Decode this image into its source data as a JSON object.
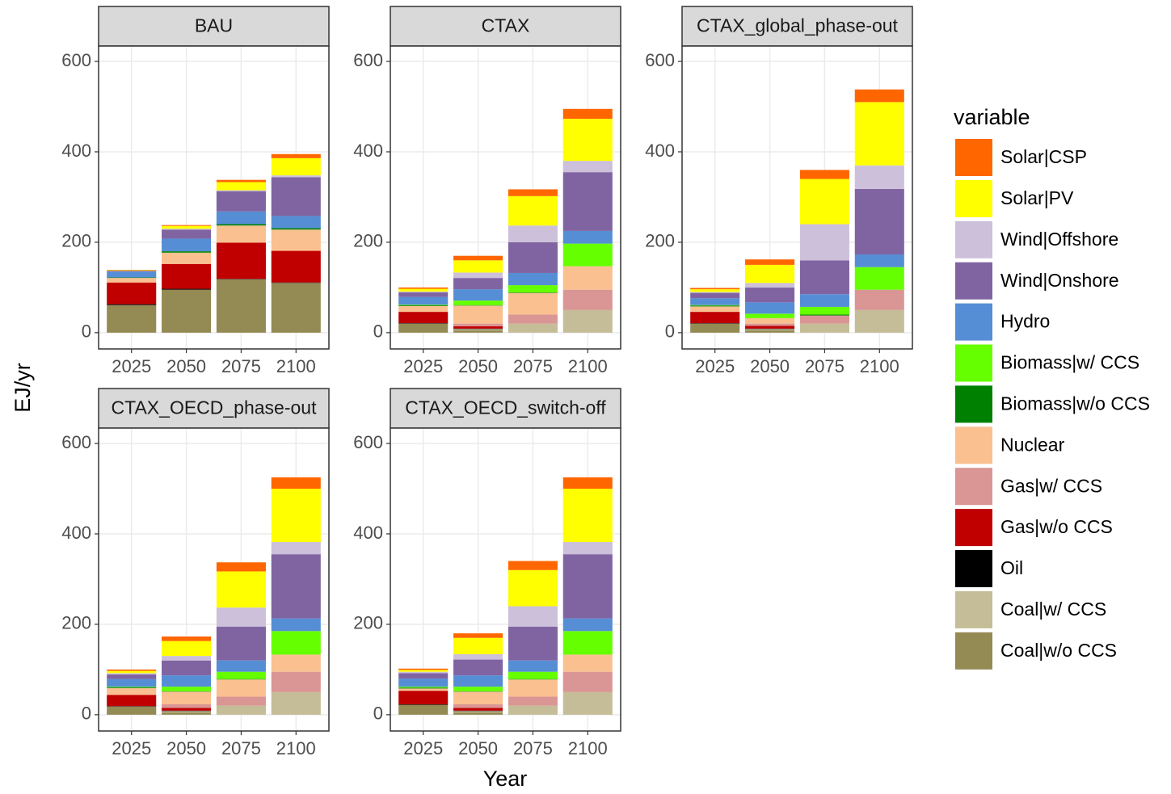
{
  "axis_labels": {
    "x": "Year",
    "y": "EJ/yr"
  },
  "legend": {
    "title": "variable",
    "position": "right",
    "items": [
      {
        "name": "Solar|CSP",
        "color": "#ff6600"
      },
      {
        "name": "Solar|PV",
        "color": "#ffff00"
      },
      {
        "name": "Wind|Offshore",
        "color": "#ccc0da"
      },
      {
        "name": "Wind|Onshore",
        "color": "#8064a2"
      },
      {
        "name": "Hydro",
        "color": "#558ed5"
      },
      {
        "name": "Biomass|w/ CCS",
        "color": "#66ff00"
      },
      {
        "name": "Biomass|w/o CCS",
        "color": "#008000"
      },
      {
        "name": "Nuclear",
        "color": "#fac090"
      },
      {
        "name": "Gas|w/ CCS",
        "color": "#d99694"
      },
      {
        "name": "Gas|w/o CCS",
        "color": "#c00000"
      },
      {
        "name": "Oil",
        "color": "#000000"
      },
      {
        "name": "Coal|w/ CCS",
        "color": "#c4bd97"
      },
      {
        "name": "Coal|w/o CCS",
        "color": "#948a54"
      }
    ]
  },
  "chart_data": [
    {
      "type": "bar",
      "stacked": true,
      "title": "BAU",
      "categories": [
        "2025",
        "2050",
        "2075",
        "2100"
      ],
      "ylim": [
        -36,
        634
      ],
      "yticks": [
        0,
        200,
        400,
        600
      ],
      "grid": true,
      "series": [
        {
          "values": [
            1,
            2,
            5,
            9
          ]
        },
        {
          "values": [
            1,
            6,
            18,
            38
          ]
        },
        {
          "values": [
            0,
            2,
            2,
            4
          ]
        },
        {
          "values": [
            2,
            20,
            45,
            86
          ]
        },
        {
          "values": [
            13,
            28,
            28,
            27
          ]
        },
        {
          "values": [
            0,
            0,
            0,
            0
          ]
        },
        {
          "values": [
            1,
            3,
            3,
            3
          ]
        },
        {
          "values": [
            10,
            25,
            38,
            47
          ]
        },
        {
          "values": [
            0,
            0,
            0,
            0
          ]
        },
        {
          "values": [
            48,
            55,
            80,
            70
          ]
        },
        {
          "values": [
            2,
            2,
            1,
            1
          ]
        },
        {
          "values": [
            0,
            0,
            0,
            0
          ]
        },
        {
          "values": [
            61,
            95,
            118,
            110
          ]
        }
      ]
    },
    {
      "type": "bar",
      "stacked": true,
      "title": "CTAX",
      "categories": [
        "2025",
        "2050",
        "2075",
        "2100"
      ],
      "ylim": [
        -36,
        634
      ],
      "yticks": [
        0,
        200,
        400,
        600
      ],
      "grid": true,
      "series": [
        {
          "values": [
            3,
            10,
            15,
            22
          ]
        },
        {
          "values": [
            6,
            27,
            65,
            93
          ]
        },
        {
          "values": [
            2,
            12,
            37,
            25
          ]
        },
        {
          "values": [
            10,
            25,
            68,
            130
          ]
        },
        {
          "values": [
            17,
            25,
            27,
            28
          ]
        },
        {
          "values": [
            1,
            10,
            16,
            50
          ]
        },
        {
          "values": [
            2,
            1,
            1,
            0
          ]
        },
        {
          "values": [
            13,
            40,
            48,
            52
          ]
        },
        {
          "values": [
            0,
            6,
            20,
            45
          ]
        },
        {
          "values": [
            25,
            5,
            0,
            0
          ]
        },
        {
          "values": [
            1,
            1,
            0,
            0
          ]
        },
        {
          "values": [
            0,
            3,
            20,
            50
          ]
        },
        {
          "values": [
            20,
            5,
            0,
            0
          ]
        }
      ]
    },
    {
      "type": "bar",
      "stacked": true,
      "title": "CTAX_global_phase-out",
      "categories": [
        "2025",
        "2050",
        "2075",
        "2100"
      ],
      "ylim": [
        -36,
        634
      ],
      "yticks": [
        0,
        200,
        400,
        600
      ],
      "grid": true,
      "series": [
        {
          "values": [
            3,
            12,
            20,
            28
          ]
        },
        {
          "values": [
            6,
            40,
            100,
            140
          ]
        },
        {
          "values": [
            2,
            10,
            80,
            52
          ]
        },
        {
          "values": [
            12,
            33,
            75,
            145
          ]
        },
        {
          "values": [
            15,
            25,
            28,
            28
          ]
        },
        {
          "values": [
            1,
            10,
            17,
            50
          ]
        },
        {
          "values": [
            2,
            0,
            2,
            0
          ]
        },
        {
          "values": [
            12,
            12,
            0,
            0
          ]
        },
        {
          "values": [
            0,
            5,
            18,
            45
          ]
        },
        {
          "values": [
            25,
            6,
            0,
            0
          ]
        },
        {
          "values": [
            1,
            1,
            0,
            0
          ]
        },
        {
          "values": [
            0,
            3,
            20,
            50
          ]
        },
        {
          "values": [
            20,
            5,
            0,
            0
          ]
        }
      ]
    },
    {
      "type": "bar",
      "stacked": true,
      "title": "CTAX_OECD_phase-out",
      "categories": [
        "2025",
        "2050",
        "2075",
        "2100"
      ],
      "ylim": [
        -36,
        634
      ],
      "yticks": [
        0,
        200,
        400,
        600
      ],
      "grid": true,
      "series": [
        {
          "values": [
            3,
            10,
            20,
            25
          ]
        },
        {
          "values": [
            5,
            33,
            80,
            118
          ]
        },
        {
          "values": [
            3,
            10,
            42,
            27
          ]
        },
        {
          "values": [
            10,
            33,
            75,
            142
          ]
        },
        {
          "values": [
            17,
            25,
            25,
            28
          ]
        },
        {
          "values": [
            1,
            10,
            16,
            52
          ]
        },
        {
          "values": [
            2,
            1,
            1,
            0
          ]
        },
        {
          "values": [
            15,
            28,
            38,
            38
          ]
        },
        {
          "values": [
            0,
            8,
            20,
            45
          ]
        },
        {
          "values": [
            25,
            6,
            0,
            0
          ]
        },
        {
          "values": [
            1,
            1,
            0,
            0
          ]
        },
        {
          "values": [
            0,
            3,
            20,
            50
          ]
        },
        {
          "values": [
            18,
            5,
            0,
            0
          ]
        }
      ]
    },
    {
      "type": "bar",
      "stacked": true,
      "title": "CTAX_OECD_switch-off",
      "categories": [
        "2025",
        "2050",
        "2075",
        "2100"
      ],
      "ylim": [
        -36,
        634
      ],
      "yticks": [
        0,
        200,
        400,
        600
      ],
      "grid": true,
      "series": [
        {
          "values": [
            3,
            10,
            20,
            25
          ]
        },
        {
          "values": [
            4,
            36,
            80,
            118
          ]
        },
        {
          "values": [
            3,
            12,
            45,
            27
          ]
        },
        {
          "values": [
            12,
            35,
            75,
            142
          ]
        },
        {
          "values": [
            18,
            25,
            25,
            28
          ]
        },
        {
          "values": [
            2,
            10,
            16,
            52
          ]
        },
        {
          "values": [
            2,
            1,
            1,
            0
          ]
        },
        {
          "values": [
            5,
            28,
            38,
            38
          ]
        },
        {
          "values": [
            0,
            8,
            20,
            45
          ]
        },
        {
          "values": [
            30,
            6,
            0,
            0
          ]
        },
        {
          "values": [
            1,
            1,
            0,
            0
          ]
        },
        {
          "values": [
            0,
            3,
            20,
            50
          ]
        },
        {
          "values": [
            22,
            5,
            0,
            0
          ]
        }
      ]
    }
  ]
}
